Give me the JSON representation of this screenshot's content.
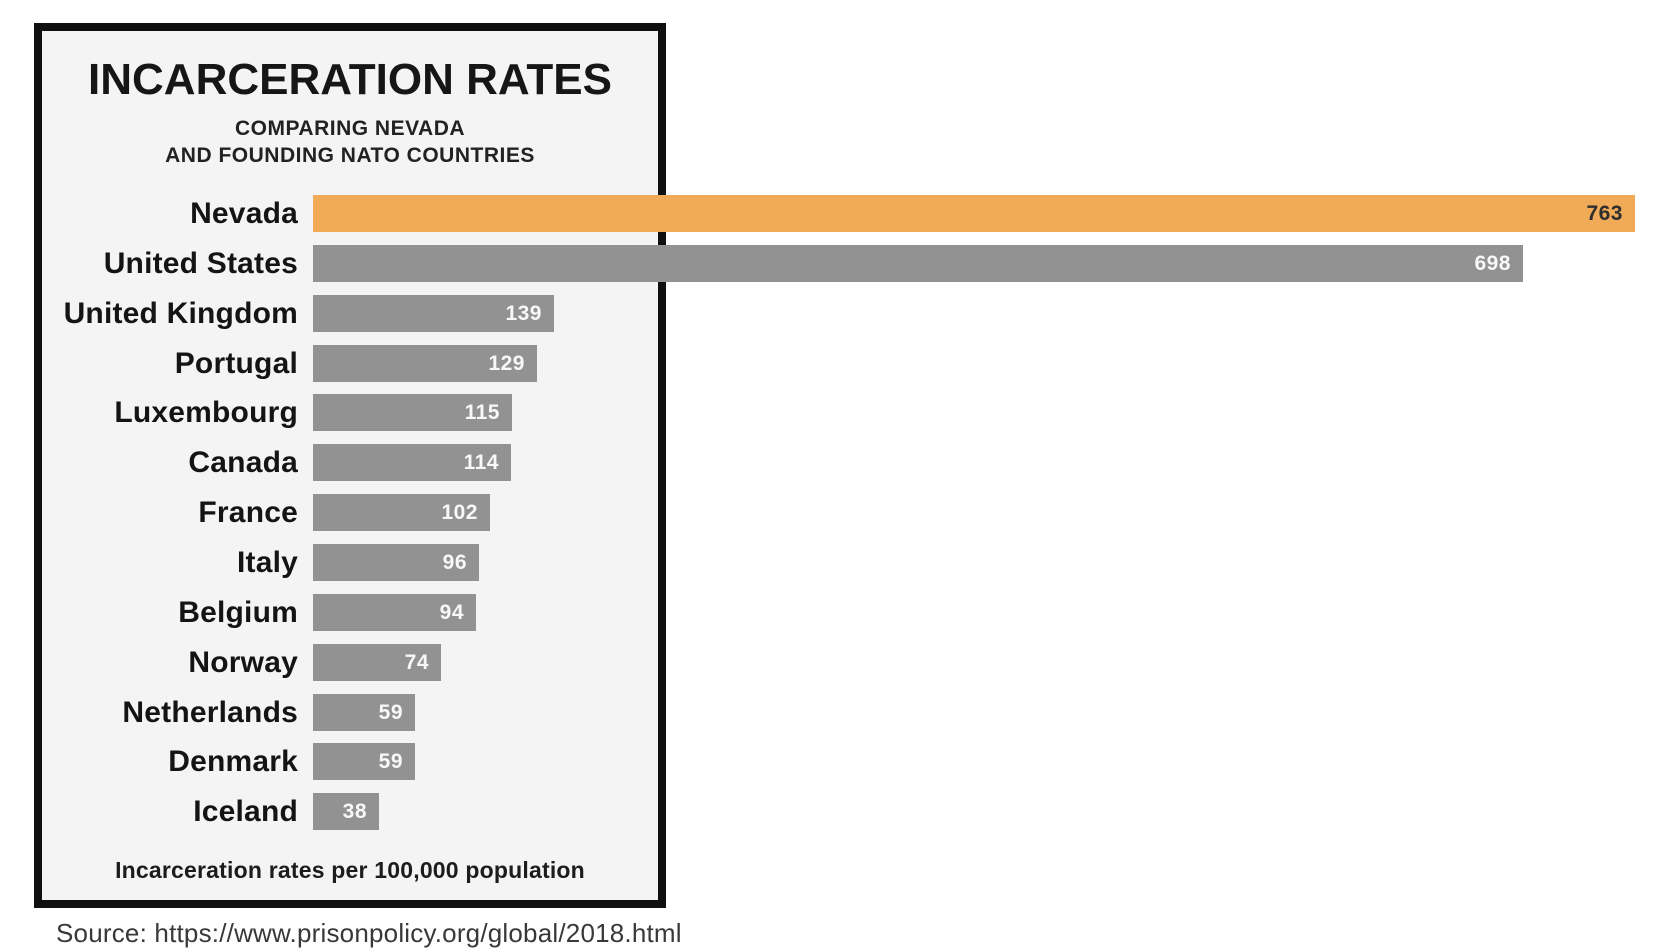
{
  "panel": {
    "border_color": "#101010",
    "background": "#f5f4f4"
  },
  "header": {
    "title": "INCARCERATION RATES",
    "subtitle_line1": "COMPARING NEVADA",
    "subtitle_line2": "AND FOUNDING NATO COUNTRIES"
  },
  "footer": {
    "note": "Incarceration rates per 100,000 population"
  },
  "source": {
    "text": "Source: https://www.prisonpolicy.org/global/2018.html"
  },
  "chart_data": {
    "type": "bar",
    "orientation": "horizontal",
    "title": "INCARCERATION RATES",
    "subtitle": "COMPARING NEVADA AND FOUNDING NATO COUNTRIES",
    "unit_note": "Incarceration rates per 100,000 population",
    "categories": [
      "Nevada",
      "United States",
      "United Kingdom",
      "Portugal",
      "Luxembourg",
      "Canada",
      "France",
      "Italy",
      "Belgium",
      "Norway",
      "Netherlands",
      "Denmark",
      "Iceland"
    ],
    "values": [
      763,
      698,
      139,
      129,
      115,
      114,
      102,
      96,
      94,
      74,
      59,
      59,
      38
    ],
    "highlight_category": "Nevada",
    "xlim": [
      0,
      776
    ],
    "grid": false,
    "legend": "none",
    "value_labels": "inside-right",
    "colors": {
      "default_bar": "#929292",
      "highlight_bar": "#f1aa57",
      "value_label_on_default": "#f8f8f8",
      "value_label_on_highlight": "#2e2e2e",
      "category_label": "#141414"
    }
  }
}
